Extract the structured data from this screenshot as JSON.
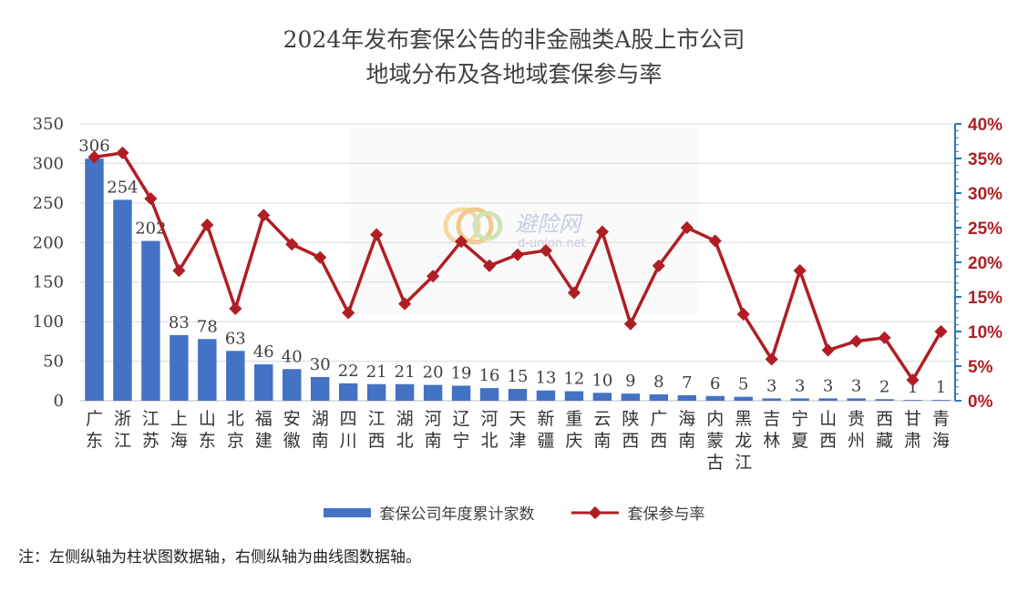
{
  "chart_data": {
    "type": "bar",
    "title_line1": "2024年发布套保公告的非金融类A股上市公司",
    "title_line2": "地域分布及各地域套保参与率",
    "categories": [
      "广东",
      "浙江",
      "江苏",
      "上海",
      "山东",
      "北京",
      "福建",
      "安徽",
      "湖南",
      "四川",
      "江西",
      "湖北",
      "河南",
      "辽宁",
      "河北",
      "天津",
      "新疆",
      "重庆",
      "云南",
      "陕西",
      "广西",
      "海南",
      "内蒙古",
      "黑龙江",
      "吉林",
      "宁夏",
      "山西",
      "贵州",
      "西藏",
      "甘肃",
      "青海"
    ],
    "series": [
      {
        "name": "套保公司年度累计家数",
        "type": "bar",
        "axis": "left",
        "color": "#4472C4",
        "values": [
          306,
          254,
          202,
          83,
          78,
          63,
          46,
          40,
          30,
          22,
          21,
          21,
          20,
          19,
          16,
          15,
          13,
          12,
          10,
          9,
          8,
          7,
          6,
          5,
          3,
          3,
          3,
          3,
          2,
          1,
          1
        ]
      },
      {
        "name": "套保参与率",
        "type": "line",
        "axis": "right",
        "color": "#B01E24",
        "values": [
          35.2,
          35.8,
          29.2,
          18.8,
          25.4,
          13.3,
          26.8,
          22.6,
          20.7,
          12.7,
          24.0,
          14.0,
          18.0,
          23.0,
          19.5,
          21.1,
          21.7,
          15.6,
          24.4,
          11.1,
          19.5,
          25.0,
          23.1,
          12.5,
          6.0,
          18.8,
          7.3,
          8.6,
          9.1,
          3.0,
          10.0
        ]
      }
    ],
    "left_axis": {
      "ylim": [
        0,
        350
      ],
      "ticks": [
        0,
        50,
        100,
        150,
        200,
        250,
        300,
        350
      ]
    },
    "right_axis": {
      "ylim": [
        0,
        40
      ],
      "ticks": [
        "0%",
        "5%",
        "10%",
        "15%",
        "20%",
        "25%",
        "30%",
        "35%",
        "40%"
      ]
    },
    "legend_position": "bottom",
    "grid": true
  },
  "note": "注：左侧纵轴为柱状图数据轴，右侧纵轴为曲线图数据轴。",
  "watermark": {
    "text": "避险网",
    "sub": "d-union.net"
  }
}
